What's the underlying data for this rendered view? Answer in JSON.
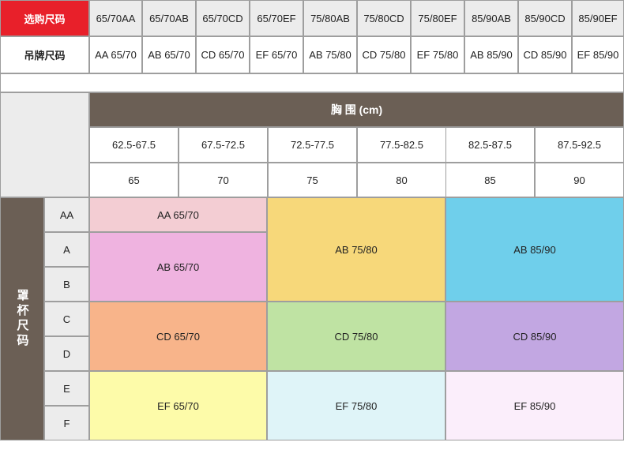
{
  "top_table": {
    "purchase_size_label": "选购尺码",
    "tag_size_label": "吊牌尺码",
    "purchase_sizes": [
      "65/70AA",
      "65/70AB",
      "65/70CD",
      "65/70EF",
      "75/80AB",
      "75/80CD",
      "75/80EF",
      "85/90AB",
      "85/90CD",
      "85/90EF"
    ],
    "tag_sizes": [
      "AA 65/70",
      "AB 65/70",
      "CD 65/70",
      "EF 65/70",
      "AB 75/80",
      "CD 75/80",
      "EF 75/80",
      "AB 85/90",
      "CD 85/90",
      "EF 85/90"
    ]
  },
  "chart": {
    "chest_header": "胸 围 (cm)",
    "chest_ranges": [
      "62.5-67.5",
      "67.5-72.5",
      "72.5-77.5",
      "77.5-82.5",
      "82.5-87.5",
      "87.5-92.5"
    ],
    "band_sizes": [
      "65",
      "70",
      "75",
      "80",
      "85",
      "90"
    ],
    "cup_label": "罩杯尺码",
    "cups": [
      "AA",
      "A",
      "B",
      "C",
      "D",
      "E",
      "F"
    ],
    "blocks": {
      "aa_6570": "AA 65/70",
      "ab_6570": "AB 65/70",
      "ab_7580": "AB 75/80",
      "ab_8590": "AB 85/90",
      "cd_6570": "CD 65/70",
      "cd_7580": "CD 75/80",
      "cd_8590": "CD 85/90",
      "ef_6570": "EF 65/70",
      "ef_7580": "EF 75/80",
      "ef_8590": "EF 85/90"
    },
    "colors": {
      "aa": "#f3cdd3",
      "ab_small": "#efb3e0",
      "ab_mid": "#f7d87a",
      "ab_large": "#6fcfeb",
      "cd_small": "#f8b48a",
      "cd_mid": "#bfe3a3",
      "cd_large": "#c2a7e2",
      "ef_small": "#fdfba9",
      "ef_mid": "#dff4f8",
      "ef_large": "#fbeefb",
      "header_brown": "#6b5f55",
      "accent_red": "#e8202a"
    }
  }
}
